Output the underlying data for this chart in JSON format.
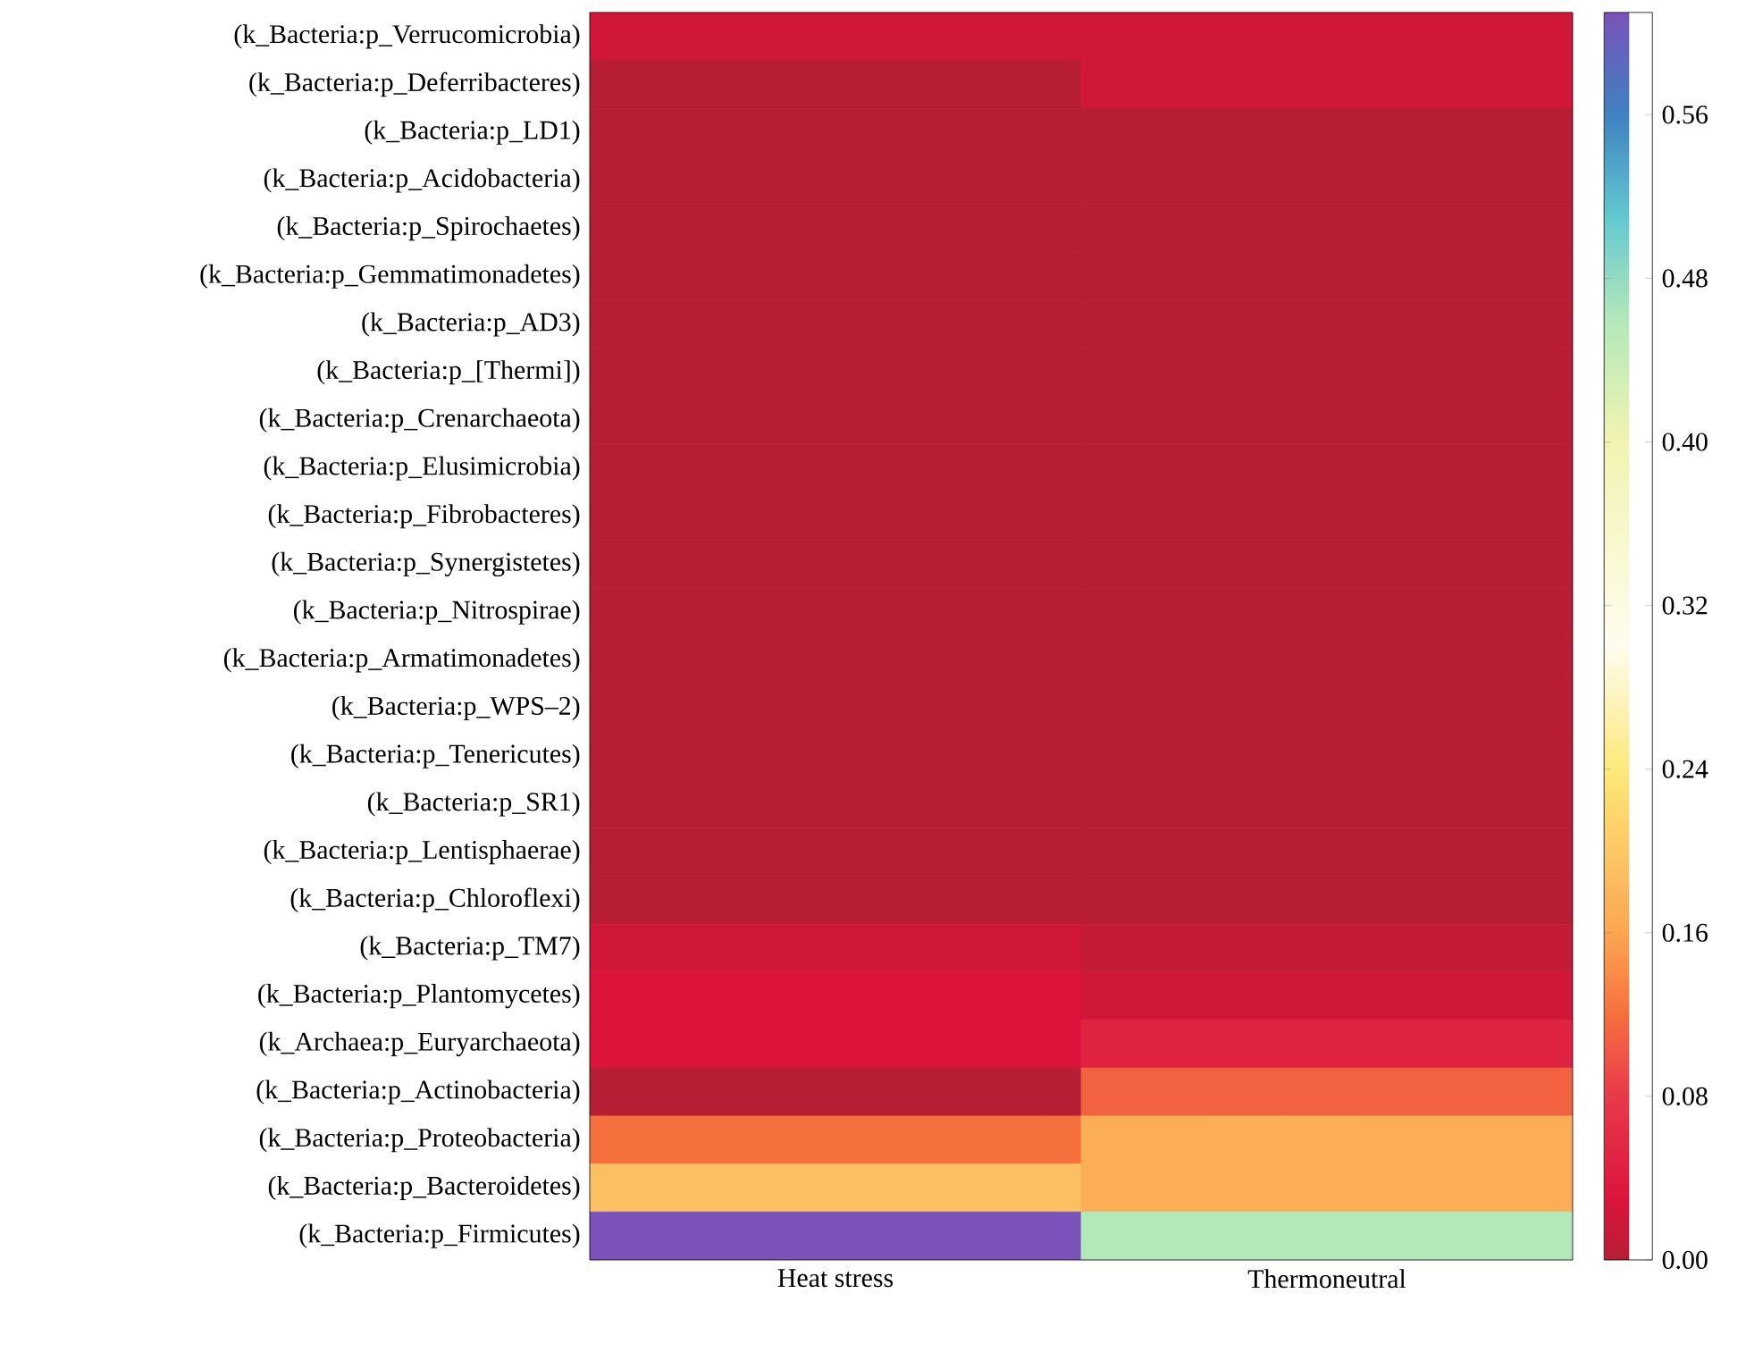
{
  "chart_data": {
    "type": "heatmap",
    "categories": [
      "Heat stress",
      "Thermoneutral"
    ],
    "y_categories": [
      "(k_Bacteria:p_Verrucomicrobia)",
      "(k_Bacteria:p_Deferribacteres)",
      "(k_Bacteria:p_LD1)",
      "(k_Bacteria:p_Acidobacteria)",
      "(k_Bacteria:p_Spirochaetes)",
      "(k_Bacteria:p_Gemmatimonadetes)",
      "(k_Bacteria:p_AD3)",
      "(k_Bacteria:p_[Thermi])",
      "(k_Bacteria:p_Crenarchaeota)",
      "(k_Bacteria:p_Elusimicrobia)",
      "(k_Bacteria:p_Fibrobacteres)",
      "(k_Bacteria:p_Synergistetes)",
      "(k_Bacteria:p_Nitrospirae)",
      "(k_Bacteria:p_Armatimonadetes)",
      "(k_Bacteria:p_WPS–2)",
      "(k_Bacteria:p_Tenericutes)",
      "(k_Bacteria:p_SR1)",
      "(k_Bacteria:p_Lentisphaerae)",
      "(k_Bacteria:p_Chloroflexi)",
      "(k_Bacteria:p_TM7)",
      "(k_Bacteria:p_Plantomycetes)",
      "(k_Archaea:p_Euryarchaeota)",
      "(k_Bacteria:p_Actinobacteria)",
      "(k_Bacteria:p_Proteobacteria)",
      "(k_Bacteria:p_Bacteroidetes)",
      "(k_Bacteria:p_Firmicutes)"
    ],
    "cells": [
      [
        0.02,
        0.02
      ],
      [
        0.0,
        0.02
      ],
      [
        0.0,
        0.0
      ],
      [
        0.0,
        0.0
      ],
      [
        0.0,
        0.0
      ],
      [
        0.0,
        0.0
      ],
      [
        0.0,
        0.0
      ],
      [
        0.0,
        0.0
      ],
      [
        0.0,
        0.0
      ],
      [
        0.0,
        0.0
      ],
      [
        0.0,
        0.0
      ],
      [
        0.0,
        0.0
      ],
      [
        0.0,
        0.0
      ],
      [
        0.0,
        0.0
      ],
      [
        0.0,
        0.0
      ],
      [
        0.0,
        0.0
      ],
      [
        0.0,
        0.0
      ],
      [
        0.0,
        0.0
      ],
      [
        0.0,
        0.0
      ],
      [
        0.02,
        0.01
      ],
      [
        0.03,
        0.02
      ],
      [
        0.03,
        0.05
      ],
      [
        0.0,
        0.11
      ],
      [
        0.12,
        0.17
      ],
      [
        0.19,
        0.17
      ],
      [
        0.61,
        0.46
      ]
    ],
    "clim": [
      0,
      0.61
    ],
    "cticks": [
      {
        "value": 0,
        "label": "0.00"
      },
      {
        "value": 0.08,
        "label": "0.08"
      },
      {
        "value": 0.16,
        "label": "0.16"
      },
      {
        "value": 0.24,
        "label": "0.24"
      },
      {
        "value": 0.32,
        "label": "0.32"
      },
      {
        "value": 0.4,
        "label": "0.40"
      },
      {
        "value": 0.48,
        "label": "0.48"
      },
      {
        "value": 0.56,
        "label": "0.56"
      }
    ]
  }
}
